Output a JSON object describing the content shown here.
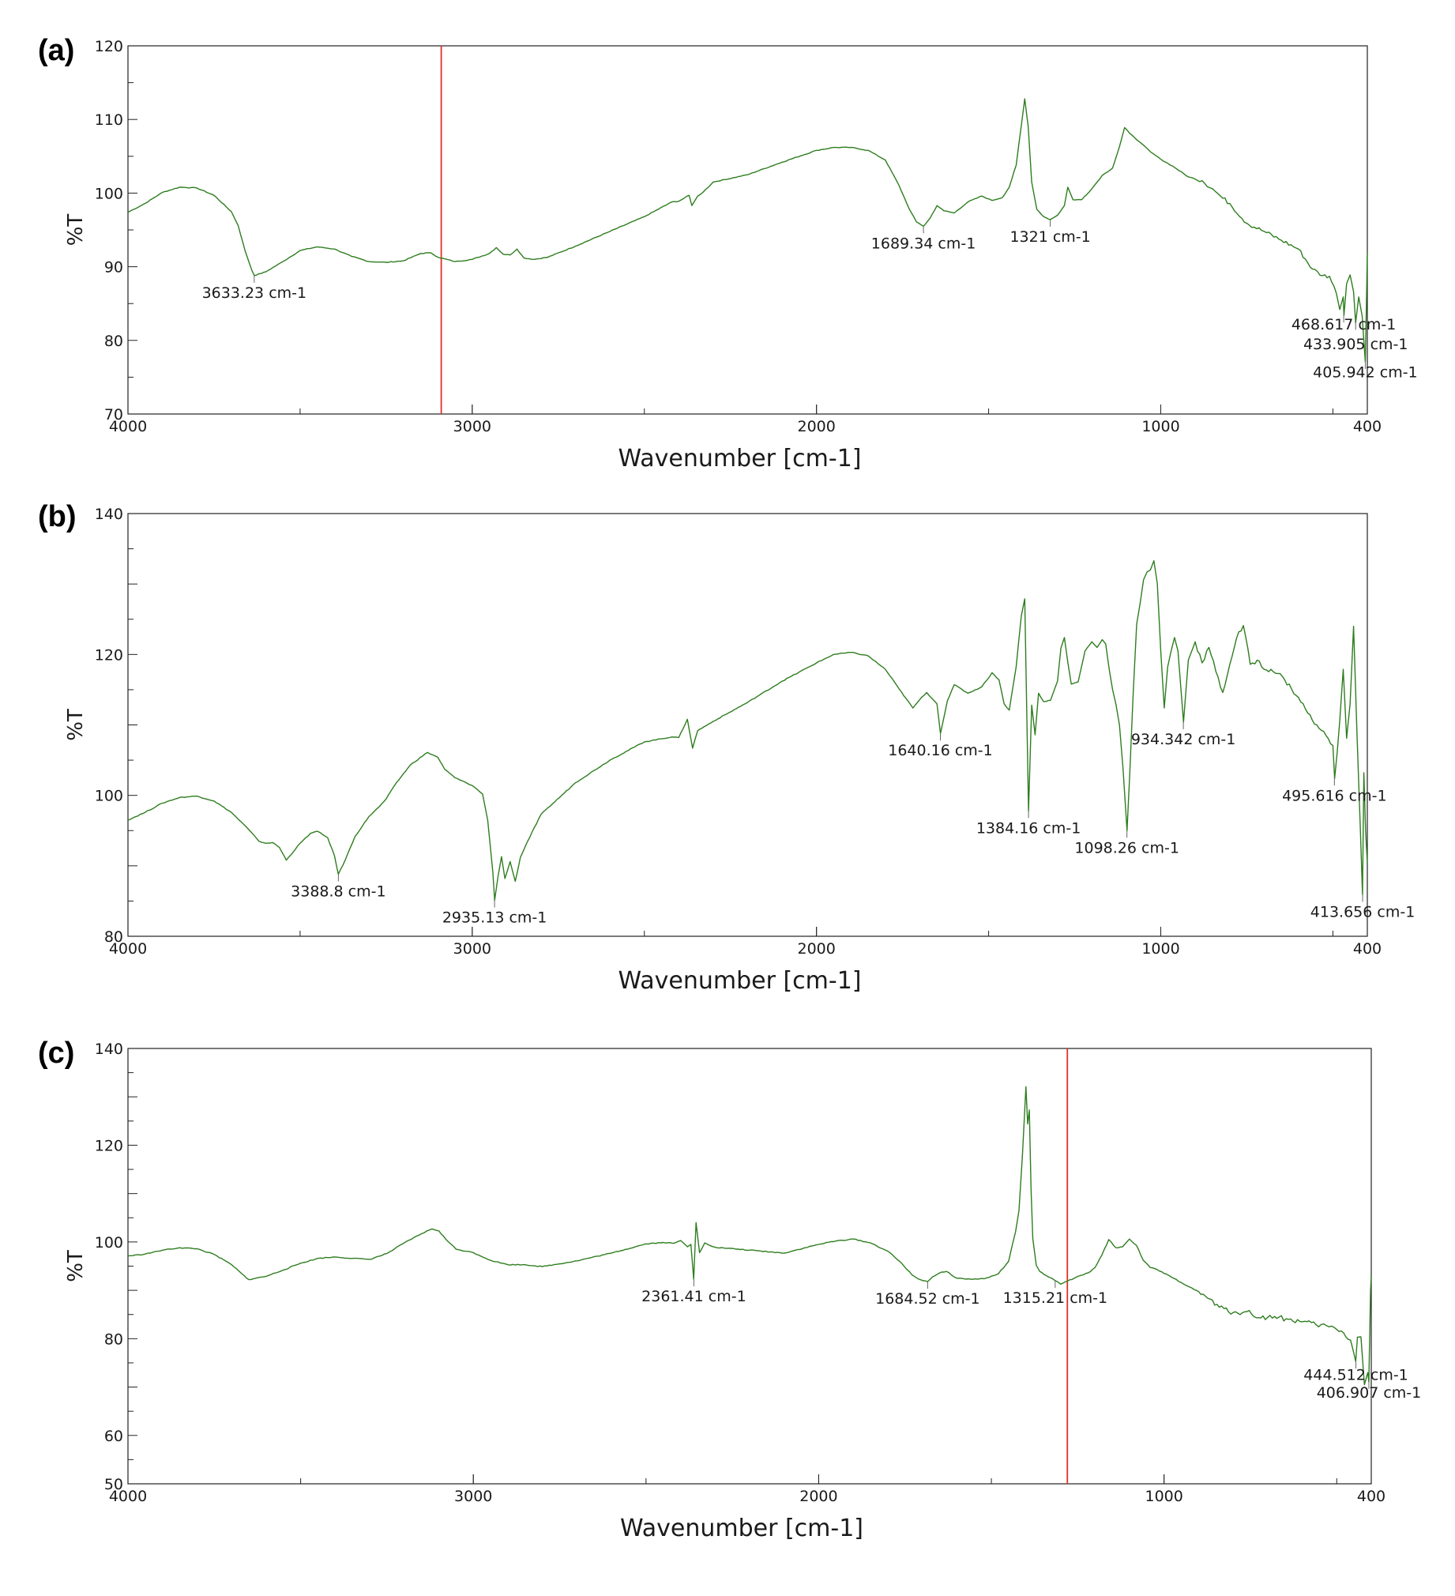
{
  "chart_data": [
    {
      "type": "line",
      "panel_label": "(a)",
      "xlabel": "Wavenumber [cm-1]",
      "ylabel": "%T",
      "xlim": [
        4000,
        400
      ],
      "ylim": [
        70,
        120
      ],
      "x_ticks": [
        4000,
        3000,
        2000,
        1000,
        400
      ],
      "y_ticks": [
        70,
        80,
        90,
        100,
        110,
        120
      ],
      "grid": false,
      "series_color": "#2e7d1f",
      "marker_line": {
        "x": 3090,
        "color": "#e0302a"
      },
      "series": [
        {
          "x": [
            4000,
            3950,
            3900,
            3850,
            3800,
            3750,
            3700,
            3680,
            3660,
            3640,
            3633,
            3600,
            3550,
            3500,
            3450,
            3400,
            3350,
            3300,
            3250,
            3200,
            3150,
            3120,
            3100,
            3050,
            3000,
            2950,
            2930,
            2910,
            2890,
            2870,
            2850,
            2820,
            2780,
            2700,
            2600,
            2500,
            2420,
            2400,
            2370,
            2362,
            2345,
            2330,
            2300,
            2200,
            2100,
            2000,
            1950,
            1900,
            1850,
            1800,
            1760,
            1730,
            1710,
            1689,
            1670,
            1650,
            1630,
            1600,
            1560,
            1520,
            1490,
            1460,
            1440,
            1420,
            1405,
            1395,
            1385,
            1375,
            1360,
            1340,
            1321,
            1300,
            1280,
            1270,
            1255,
            1230,
            1200,
            1170,
            1140,
            1120,
            1105,
            1090,
            1060,
            1030,
            1000,
            960,
            920,
            880,
            850,
            820,
            800,
            750,
            700,
            650,
            600,
            560,
            530,
            510,
            490,
            480,
            470,
            468,
            460,
            450,
            440,
            434,
            425,
            415,
            406,
            402,
            400
          ],
          "y": [
            97.4,
            98.6,
            100.1,
            100.8,
            100.7,
            99.7,
            97.5,
            95.6,
            92.2,
            89.5,
            88.8,
            89.3,
            90.7,
            92.2,
            92.7,
            92.4,
            91.4,
            90.7,
            90.6,
            90.8,
            91.8,
            91.9,
            91.3,
            90.7,
            91.0,
            91.8,
            92.6,
            91.7,
            91.6,
            92.4,
            91.2,
            91.0,
            91.3,
            92.8,
            94.8,
            96.8,
            98.8,
            98.9,
            99.7,
            98.3,
            99.6,
            100.1,
            101.5,
            102.5,
            104.2,
            105.8,
            106.2,
            106.2,
            105.8,
            104.5,
            101.0,
            97.8,
            96.1,
            95.5,
            96.6,
            98.3,
            97.6,
            97.3,
            98.8,
            99.6,
            99.0,
            99.4,
            100.8,
            103.8,
            109.2,
            112.8,
            109.0,
            101.5,
            97.8,
            96.8,
            96.4,
            97.0,
            98.3,
            100.8,
            99.1,
            99.1,
            100.6,
            102.4,
            103.4,
            106.3,
            108.9,
            108.1,
            106.9,
            105.6,
            104.6,
            103.5,
            102.2,
            101.7,
            100.6,
            99.3,
            98.6,
            95.9,
            94.8,
            93.6,
            92.4,
            89.7,
            88.8,
            88.7,
            86.4,
            84.2,
            85.9,
            83.4,
            87.7,
            88.9,
            86.6,
            82.4,
            85.9,
            83.3,
            77.1,
            86.3,
            92.0
          ]
        }
      ],
      "annotations": [
        {
          "x": 3633.23,
          "y": 88.8,
          "text": "3633.23 cm-1",
          "align": "center"
        },
        {
          "x": 1689.34,
          "y": 95.5,
          "text": "1689.34 cm-1",
          "align": "center"
        },
        {
          "x": 1321,
          "y": 96.4,
          "text": "1321 cm-1",
          "align": "center"
        },
        {
          "x": 468.617,
          "y": 83.4,
          "text": "468.617 cm-1",
          "align": "center",
          "label_y": 81.5
        },
        {
          "x": 433.905,
          "y": 82.4,
          "text": "433.905 cm-1",
          "align": "center",
          "label_y": 78.8
        },
        {
          "x": 405.942,
          "y": 77.1,
          "text": "405.942 cm-1",
          "align": "center",
          "label_y": 75.0
        }
      ]
    },
    {
      "type": "line",
      "panel_label": "(b)",
      "xlabel": "Wavenumber [cm-1]",
      "ylabel": "%T",
      "xlim": [
        4000,
        400
      ],
      "ylim": [
        80,
        140
      ],
      "x_ticks": [
        4000,
        3000,
        2000,
        1000,
        400
      ],
      "y_ticks": [
        80,
        100,
        120,
        140
      ],
      "grid": false,
      "series_color": "#2e7d1f",
      "series": [
        {
          "x": [
            4000,
            3950,
            3900,
            3850,
            3800,
            3750,
            3700,
            3650,
            3620,
            3600,
            3580,
            3560,
            3540,
            3500,
            3470,
            3450,
            3420,
            3400,
            3389,
            3370,
            3340,
            3300,
            3270,
            3250,
            3220,
            3180,
            3130,
            3100,
            3080,
            3050,
            3000,
            2970,
            2955,
            2940,
            2935,
            2925,
            2915,
            2905,
            2890,
            2875,
            2860,
            2840,
            2800,
            2700,
            2600,
            2500,
            2420,
            2400,
            2375,
            2360,
            2345,
            2300,
            2200,
            2100,
            2000,
            1950,
            1900,
            1850,
            1800,
            1760,
            1720,
            1700,
            1680,
            1650,
            1640,
            1620,
            1600,
            1560,
            1520,
            1490,
            1470,
            1455,
            1440,
            1420,
            1405,
            1395,
            1384,
            1375,
            1365,
            1355,
            1340,
            1320,
            1300,
            1290,
            1280,
            1270,
            1260,
            1240,
            1220,
            1200,
            1185,
            1170,
            1160,
            1150,
            1140,
            1130,
            1120,
            1110,
            1098,
            1090,
            1080,
            1070,
            1060,
            1050,
            1040,
            1030,
            1020,
            1010,
            1000,
            990,
            980,
            970,
            960,
            950,
            934,
            920,
            900,
            880,
            860,
            840,
            820,
            800,
            780,
            760,
            740,
            720,
            700,
            680,
            660,
            640,
            620,
            600,
            580,
            560,
            540,
            520,
            500,
            495,
            480,
            470,
            460,
            450,
            440,
            430,
            420,
            414,
            410,
            405,
            400
          ],
          "y": [
            96.5,
            97.6,
            98.9,
            99.7,
            99.9,
            99.2,
            97.6,
            95.2,
            93.5,
            93.2,
            93.3,
            92.6,
            90.8,
            93.2,
            94.6,
            94.9,
            94.0,
            91.4,
            88.8,
            90.7,
            94.2,
            97.0,
            98.4,
            99.5,
            101.8,
            104.3,
            106.1,
            105.4,
            103.7,
            102.5,
            101.4,
            100.2,
            96.5,
            89.0,
            85.1,
            88.5,
            91.3,
            88.2,
            90.6,
            87.8,
            91.2,
            93.4,
            97.3,
            101.8,
            105.0,
            107.6,
            108.3,
            108.2,
            110.8,
            106.7,
            109.2,
            110.5,
            113.2,
            116.2,
            118.8,
            120.0,
            120.3,
            119.8,
            117.9,
            115.1,
            112.4,
            113.6,
            114.6,
            113.0,
            108.8,
            113.4,
            115.7,
            114.5,
            115.4,
            117.4,
            116.4,
            113.0,
            112.1,
            118.3,
            125.5,
            127.9,
            97.8,
            112.8,
            108.6,
            114.5,
            113.3,
            113.5,
            116.2,
            120.9,
            122.4,
            118.9,
            115.8,
            116.1,
            120.5,
            121.8,
            121.0,
            122.1,
            121.5,
            118.0,
            115.0,
            112.9,
            110.0,
            104.0,
            95.0,
            103.2,
            114.5,
            124.3,
            127.2,
            130.6,
            131.7,
            132.0,
            133.3,
            130.1,
            120.5,
            112.4,
            118.2,
            120.5,
            122.4,
            120.5,
            110.4,
            119.2,
            121.8,
            118.8,
            121.0,
            117.6,
            114.6,
            118.5,
            122.3,
            124.1,
            118.6,
            119.2,
            117.9,
            117.9,
            117.3,
            116.4,
            115.1,
            113.9,
            112.3,
            110.7,
            109.5,
            108.5,
            107.1,
            102.4,
            110.6,
            117.9,
            108.1,
            113.0,
            124.0,
            108.8,
            94.8,
            85.9,
            103.2,
            95.0,
            90.4
          ]
        }
      ],
      "annotations": [
        {
          "x": 3388.8,
          "y": 88.8,
          "text": "3388.8 cm-1",
          "align": "center"
        },
        {
          "x": 2935.13,
          "y": 85.1,
          "text": "2935.13 cm-1",
          "align": "center"
        },
        {
          "x": 1640.16,
          "y": 108.8,
          "text": "1640.16 cm-1",
          "align": "center"
        },
        {
          "x": 1384.16,
          "y": 97.8,
          "text": "1384.16 cm-1",
          "align": "center"
        },
        {
          "x": 1098.26,
          "y": 95.0,
          "text": "1098.26 cm-1",
          "align": "center"
        },
        {
          "x": 934.342,
          "y": 110.4,
          "text": "934.342 cm-1",
          "align": "center"
        },
        {
          "x": 495.616,
          "y": 102.4,
          "text": "495.616 cm-1",
          "align": "center"
        },
        {
          "x": 413.656,
          "y": 85.9,
          "text": "413.656 cm-1",
          "align": "center"
        }
      ]
    },
    {
      "type": "line",
      "panel_label": "(c)",
      "xlabel": "Wavenumber [cm-1]",
      "ylabel": "%T",
      "xlim": [
        4000,
        400
      ],
      "ylim": [
        50,
        140
      ],
      "x_ticks": [
        4000,
        3000,
        2000,
        1000,
        400
      ],
      "y_ticks": [
        50,
        60,
        80,
        100,
        120,
        140
      ],
      "grid": false,
      "series_color": "#2e7d1f",
      "marker_line": {
        "x": 1280,
        "color": "#e0302a"
      },
      "series": [
        {
          "x": [
            4000,
            3950,
            3900,
            3850,
            3800,
            3750,
            3700,
            3670,
            3650,
            3630,
            3600,
            3550,
            3500,
            3450,
            3400,
            3350,
            3300,
            3250,
            3200,
            3150,
            3120,
            3100,
            3080,
            3050,
            3000,
            2950,
            2900,
            2850,
            2800,
            2700,
            2600,
            2500,
            2450,
            2420,
            2400,
            2380,
            2370,
            2362,
            2355,
            2345,
            2330,
            2300,
            2200,
            2100,
            2000,
            1950,
            1900,
            1850,
            1800,
            1760,
            1730,
            1710,
            1685,
            1670,
            1650,
            1630,
            1600,
            1560,
            1520,
            1480,
            1450,
            1430,
            1420,
            1410,
            1400,
            1395,
            1390,
            1385,
            1380,
            1370,
            1360,
            1340,
            1315,
            1300,
            1280,
            1260,
            1240,
            1220,
            1200,
            1180,
            1160,
            1140,
            1120,
            1100,
            1080,
            1060,
            1040,
            1020,
            1000,
            980,
            950,
            920,
            880,
            840,
            800,
            760,
            720,
            680,
            640,
            600,
            560,
            530,
            500,
            480,
            460,
            445,
            440,
            430,
            420,
            410,
            407,
            402,
            400
          ],
          "y": [
            97.1,
            97.5,
            98.3,
            98.8,
            98.6,
            97.4,
            95.3,
            93.4,
            92.2,
            92.5,
            92.9,
            94.2,
            95.6,
            96.6,
            96.9,
            96.6,
            96.4,
            97.6,
            99.8,
            101.7,
            102.7,
            102.3,
            100.6,
            98.5,
            97.8,
            96.2,
            95.3,
            95.3,
            94.9,
            96.1,
            97.7,
            99.6,
            99.9,
            99.7,
            100.3,
            99.0,
            99.5,
            92.3,
            104.0,
            97.8,
            99.8,
            98.9,
            98.3,
            97.7,
            99.5,
            100.2,
            100.6,
            99.8,
            98.1,
            95.6,
            93.2,
            92.3,
            91.8,
            92.8,
            93.6,
            93.9,
            92.5,
            92.3,
            92.4,
            93.4,
            96.0,
            102.1,
            106.5,
            118.0,
            132.1,
            124.4,
            127.3,
            110.9,
            100.7,
            95.2,
            93.9,
            93.0,
            92.0,
            91.3,
            91.9,
            92.5,
            93.1,
            93.6,
            94.7,
            97.3,
            100.5,
            98.8,
            99.0,
            100.6,
            99.3,
            96.2,
            94.7,
            94.3,
            93.5,
            92.8,
            91.6,
            90.5,
            88.8,
            86.5,
            85.4,
            85.6,
            84.3,
            84.6,
            84.0,
            83.5,
            82.9,
            82.7,
            81.9,
            81.2,
            79.7,
            75.3,
            80.3,
            80.4,
            70.5,
            73.0,
            71.1,
            90.0,
            93.0
          ]
        }
      ],
      "annotations": [
        {
          "x": 2361.41,
          "y": 92.3,
          "text": "2361.41 cm-1",
          "align": "center"
        },
        {
          "x": 1684.52,
          "y": 91.8,
          "text": "1684.52 cm-1",
          "align": "center"
        },
        {
          "x": 1315.21,
          "y": 92.0,
          "text": "1315.21 cm-1",
          "align": "center"
        },
        {
          "x": 444.512,
          "y": 75.3,
          "text": "444.512 cm-1",
          "align": "center",
          "label_y": 71.5
        },
        {
          "x": 406.907,
          "y": 71.1,
          "text": "406.907 cm-1",
          "align": "center",
          "label_y": 67.8
        }
      ]
    }
  ]
}
